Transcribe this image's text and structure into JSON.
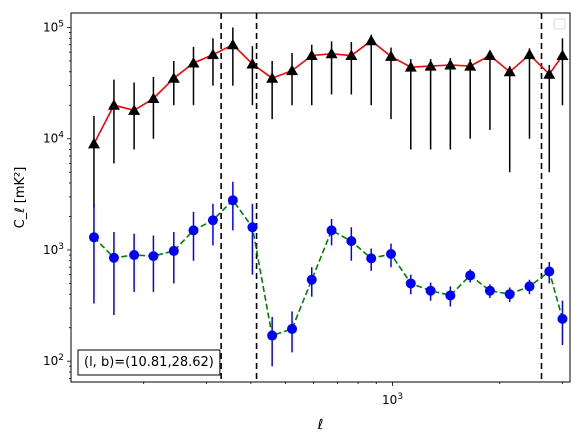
{
  "chart_data": {
    "type": "line",
    "xlabel": "ℓ",
    "ylabel": "C_ℓ  [mK²]",
    "xscale": "log",
    "yscale": "log",
    "xlim": [
      125,
      3150
    ],
    "ylim": [
      65,
      135000
    ],
    "x_tick_labels": [
      {
        "value": 1000,
        "label": "10^3"
      }
    ],
    "y_tick_labels": [
      {
        "value": 100,
        "label": "10^2"
      },
      {
        "value": 1000,
        "label": "10^3"
      },
      {
        "value": 10000,
        "label": "10^4"
      },
      {
        "value": 100000,
        "label": "10^5"
      }
    ],
    "grid": false,
    "legend": "top-right (empty)",
    "annotation": "(l, b)=(10.81,28.62)",
    "vertical_lines": [
      330,
      415,
      2620
    ],
    "x": [
      145,
      165,
      188,
      213,
      243,
      276,
      313,
      356,
      404,
      459,
      522,
      593,
      674,
      766,
      871,
      990,
      1125,
      1279,
      1453,
      1652,
      1877,
      2133,
      2424,
      2755,
      3000
    ],
    "series": [
      {
        "marker": "triangle",
        "marker_color": "#000000",
        "line_color": "#ff0000",
        "line_style": "solid",
        "values": [
          9000,
          20000,
          18000,
          23000,
          35000,
          48000,
          57000,
          70000,
          47000,
          35000,
          41000,
          56000,
          58000,
          56000,
          76000,
          55000,
          44000,
          45000,
          46000,
          45000,
          56000,
          40000,
          57000,
          38000,
          56000
        ],
        "err_low": [
          2400,
          6000,
          8000,
          10000,
          20000,
          20000,
          30000,
          30000,
          20000,
          15000,
          20000,
          20000,
          25000,
          25000,
          20000,
          15000,
          8000,
          8000,
          8000,
          10000,
          12000,
          5000,
          10000,
          5000,
          20000
        ],
        "err_high": [
          16000,
          34000,
          32000,
          36000,
          50000,
          67000,
          80000,
          100000,
          68000,
          50000,
          59000,
          70000,
          75000,
          74000,
          86000,
          66000,
          52000,
          52000,
          53000,
          52000,
          62000,
          45000,
          65000,
          46000,
          80000
        ]
      },
      {
        "marker": "circle",
        "marker_color": "#0000ff",
        "line_color": "#008000",
        "line_style": "dashed",
        "values": [
          1300,
          850,
          900,
          880,
          980,
          1500,
          1850,
          2800,
          1600,
          170,
          195,
          540,
          1500,
          1200,
          840,
          920,
          500,
          430,
          390,
          590,
          430,
          400,
          470,
          640,
          240
        ],
        "err_low": [
          330,
          260,
          420,
          420,
          500,
          800,
          1100,
          1500,
          600,
          90,
          120,
          380,
          1100,
          800,
          650,
          700,
          400,
          350,
          310,
          510,
          370,
          340,
          400,
          500,
          140
        ],
        "err_high": [
          2600,
          1450,
          1400,
          1350,
          1450,
          2200,
          2600,
          4100,
          2600,
          250,
          280,
          700,
          1900,
          1600,
          1030,
          1140,
          600,
          510,
          470,
          670,
          490,
          460,
          540,
          780,
          350
        ]
      }
    ]
  }
}
